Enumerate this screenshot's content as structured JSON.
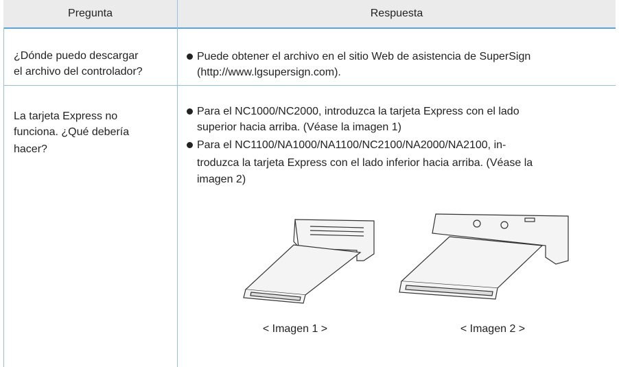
{
  "table": {
    "header": [
      "Pregunta",
      "Respuesta"
    ],
    "rows": [
      {
        "question": [
          "¿Dónde puedo descargar",
          "el archivo del controlador?"
        ],
        "answer": [
          [
            "Puede obtener el archivo en el sitio Web de asistencia de SuperSign",
            "(http://www.lgsupersign.com)."
          ]
        ]
      },
      {
        "question": [
          "La tarjeta Express no",
          "funciona. ¿Qué debería",
          "hacer?"
        ],
        "answer": [
          [
            "Para el NC1000/NC2000, introduzca la tarjeta Express con el lado",
            "superior hacia arriba. (Véase la imagen 1)"
          ],
          [
            "Para el NC1100/NA1000/NA1100/NC2100/NA2000/NA2100, in-",
            "troduzca la tarjeta Express con el lado inferior hacia arriba. (Véase la",
            "imagen 2)"
          ]
        ],
        "figures": [
          "< Imagen 1 >",
          "< Imagen 2 >"
        ]
      }
    ]
  }
}
